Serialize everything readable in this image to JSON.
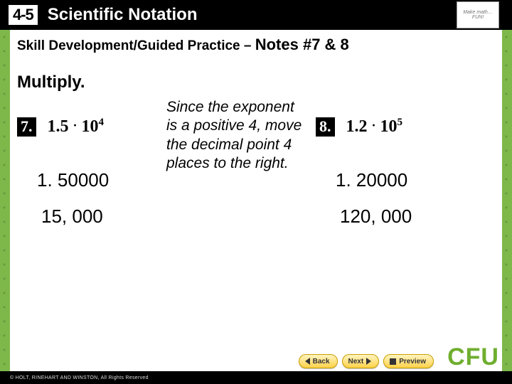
{
  "header": {
    "course_badge": "4-5",
    "lesson_title": "Scientific Notation",
    "logo_text": "Make math… FUN!"
  },
  "subtitle": {
    "lead": "Skill Development/Guided Practice",
    "dash": " – ",
    "notes": "Notes #7 & 8"
  },
  "instruction": "Multiply.",
  "problems": {
    "p7": {
      "num": "7.",
      "expr_a": "1.5",
      "op": "·",
      "expr_b_base": "10",
      "expr_b_exp": "4",
      "step1": "1. 50000",
      "answer": "15, 000"
    },
    "p8": {
      "num": "8.",
      "expr_a": "1.2",
      "op": "·",
      "expr_b_base": "10",
      "expr_b_exp": "5",
      "step1": "1. 20000",
      "answer": "120, 000"
    }
  },
  "explain": "Since the exponent is a positive 4, move the decimal point 4 places to the right.",
  "nav": {
    "back": "Back",
    "next": "Next",
    "preview": "Preview"
  },
  "cfu": "CFU",
  "footer": "© HOLT, RINEHART AND WINSTON, All Rights Reserved",
  "colors": {
    "green": "#7fb84a",
    "cfu_green": "#6fae2f",
    "nav_yellow_top": "#fff4c0",
    "nav_yellow_bot": "#ffd24a"
  }
}
